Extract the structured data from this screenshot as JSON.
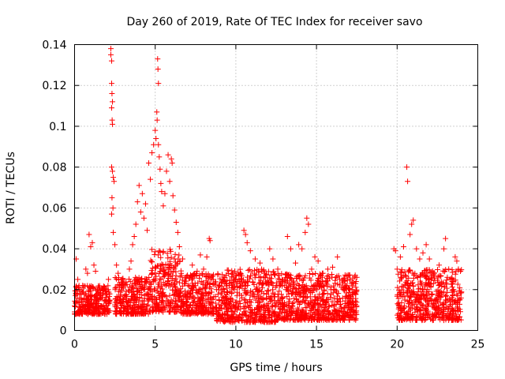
{
  "chart_data": {
    "type": "scatter",
    "title": "Day 260 of 2019, Rate Of TEC Index for receiver savo",
    "xlabel": "GPS time / hours",
    "ylabel": "ROTI / TECUs",
    "xlim": [
      0,
      25
    ],
    "ylim": [
      0,
      0.14
    ],
    "xticks": [
      0,
      5,
      10,
      15,
      20,
      25
    ],
    "xtick_labels": [
      "0",
      "5",
      "10",
      "15",
      "20",
      "25"
    ],
    "yticks": [
      0,
      0.02,
      0.04,
      0.06,
      0.08,
      0.1,
      0.12,
      0.14
    ],
    "ytick_labels": [
      "0",
      "0.02",
      "0.04",
      "0.06",
      "0.08",
      "0.1",
      "0.12",
      "0.14"
    ],
    "grid": true,
    "marker": "+",
    "color": "#ff0000",
    "series": [
      {
        "points": [
          [
            0.0,
            0.012
          ],
          [
            0.1,
            0.035
          ],
          [
            0.2,
            0.025
          ],
          [
            0.3,
            0.02
          ],
          [
            0.4,
            0.018
          ],
          [
            0.5,
            0.022
          ],
          [
            0.6,
            0.015
          ],
          [
            0.7,
            0.03
          ],
          [
            0.8,
            0.028
          ],
          [
            0.9,
            0.047
          ],
          [
            1.0,
            0.041
          ],
          [
            1.1,
            0.043
          ],
          [
            1.2,
            0.032
          ],
          [
            1.3,
            0.029
          ],
          [
            1.4,
            0.02
          ],
          [
            1.6,
            0.016
          ],
          [
            1.8,
            0.021
          ],
          [
            2.0,
            0.018
          ],
          [
            2.1,
            0.025
          ],
          [
            2.25,
            0.138
          ],
          [
            2.25,
            0.135
          ],
          [
            2.3,
            0.132
          ],
          [
            2.3,
            0.121
          ],
          [
            2.32,
            0.116
          ],
          [
            2.35,
            0.112
          ],
          [
            2.3,
            0.109
          ],
          [
            2.33,
            0.103
          ],
          [
            2.35,
            0.101
          ],
          [
            2.3,
            0.08
          ],
          [
            2.35,
            0.078
          ],
          [
            2.4,
            0.075
          ],
          [
            2.45,
            0.073
          ],
          [
            2.32,
            0.065
          ],
          [
            2.38,
            0.06
          ],
          [
            2.3,
            0.057
          ],
          [
            2.4,
            0.048
          ],
          [
            2.5,
            0.042
          ],
          [
            2.6,
            0.032
          ],
          [
            2.7,
            0.028
          ],
          [
            2.8,
            0.022
          ],
          [
            3.0,
            0.025
          ],
          [
            3.2,
            0.019
          ],
          [
            3.4,
            0.03
          ],
          [
            3.5,
            0.034
          ],
          [
            3.6,
            0.042
          ],
          [
            3.7,
            0.046
          ],
          [
            3.8,
            0.052
          ],
          [
            3.9,
            0.063
          ],
          [
            4.0,
            0.071
          ],
          [
            4.1,
            0.058
          ],
          [
            4.2,
            0.067
          ],
          [
            4.3,
            0.055
          ],
          [
            4.4,
            0.062
          ],
          [
            4.5,
            0.049
          ],
          [
            4.6,
            0.082
          ],
          [
            4.7,
            0.074
          ],
          [
            4.8,
            0.087
          ],
          [
            4.9,
            0.091
          ],
          [
            5.0,
            0.098
          ],
          [
            5.05,
            0.094
          ],
          [
            5.1,
            0.107
          ],
          [
            5.12,
            0.103
          ],
          [
            5.15,
            0.133
          ],
          [
            5.17,
            0.128
          ],
          [
            5.2,
            0.121
          ],
          [
            5.2,
            0.091
          ],
          [
            5.25,
            0.085
          ],
          [
            5.3,
            0.079
          ],
          [
            5.35,
            0.072
          ],
          [
            5.4,
            0.068
          ],
          [
            5.5,
            0.061
          ],
          [
            5.6,
            0.067
          ],
          [
            5.7,
            0.078
          ],
          [
            5.8,
            0.086
          ],
          [
            5.9,
            0.073
          ],
          [
            6.0,
            0.084
          ],
          [
            6.05,
            0.082
          ],
          [
            6.1,
            0.066
          ],
          [
            6.2,
            0.059
          ],
          [
            6.3,
            0.053
          ],
          [
            6.4,
            0.048
          ],
          [
            6.5,
            0.041
          ],
          [
            6.7,
            0.035
          ],
          [
            7.0,
            0.027
          ],
          [
            7.3,
            0.032
          ],
          [
            7.6,
            0.029
          ],
          [
            7.8,
            0.037
          ],
          [
            8.0,
            0.03
          ],
          [
            8.2,
            0.036
          ],
          [
            8.35,
            0.045
          ],
          [
            8.4,
            0.044
          ],
          [
            8.6,
            0.025
          ],
          [
            8.8,
            0.02
          ],
          [
            9.0,
            0.022
          ],
          [
            9.3,
            0.019
          ],
          [
            9.6,
            0.023
          ],
          [
            9.9,
            0.02
          ],
          [
            10.2,
            0.025
          ],
          [
            10.5,
            0.049
          ],
          [
            10.6,
            0.047
          ],
          [
            10.7,
            0.043
          ],
          [
            10.9,
            0.039
          ],
          [
            11.2,
            0.035
          ],
          [
            11.5,
            0.033
          ],
          [
            11.8,
            0.028
          ],
          [
            12.1,
            0.04
          ],
          [
            12.3,
            0.035
          ],
          [
            12.6,
            0.03
          ],
          [
            12.9,
            0.024
          ],
          [
            13.2,
            0.046
          ],
          [
            13.4,
            0.04
          ],
          [
            13.7,
            0.033
          ],
          [
            13.9,
            0.042
          ],
          [
            14.1,
            0.04
          ],
          [
            14.3,
            0.048
          ],
          [
            14.4,
            0.055
          ],
          [
            14.5,
            0.052
          ],
          [
            14.7,
            0.03
          ],
          [
            14.9,
            0.036
          ],
          [
            15.1,
            0.034
          ],
          [
            15.4,
            0.028
          ],
          [
            15.7,
            0.03
          ],
          [
            16.0,
            0.031
          ],
          [
            16.3,
            0.036
          ],
          [
            16.6,
            0.025
          ],
          [
            16.9,
            0.022
          ],
          [
            17.2,
            0.02
          ],
          [
            17.4,
            0.027
          ],
          [
            17.5,
            0.026
          ],
          [
            19.8,
            0.04
          ],
          [
            19.9,
            0.039
          ],
          [
            20.0,
            0.03
          ],
          [
            20.2,
            0.036
          ],
          [
            20.4,
            0.041
          ],
          [
            20.6,
            0.08
          ],
          [
            20.65,
            0.073
          ],
          [
            20.8,
            0.047
          ],
          [
            20.9,
            0.052
          ],
          [
            21.0,
            0.054
          ],
          [
            21.2,
            0.04
          ],
          [
            21.4,
            0.035
          ],
          [
            21.6,
            0.038
          ],
          [
            21.8,
            0.042
          ],
          [
            22.0,
            0.035
          ],
          [
            22.3,
            0.028
          ],
          [
            22.6,
            0.032
          ],
          [
            22.9,
            0.04
          ],
          [
            23.0,
            0.045
          ],
          [
            23.2,
            0.03
          ],
          [
            23.4,
            0.025
          ],
          [
            23.6,
            0.036
          ],
          [
            23.7,
            0.034
          ],
          [
            23.8,
            0.03
          ],
          [
            23.9,
            0.015
          ]
        ],
        "bands": [
          {
            "x": [
              0.0,
              2.2
            ],
            "y": [
              0.008,
              0.022
            ]
          },
          {
            "x": [
              2.5,
              4.6
            ],
            "y": [
              0.008,
              0.026
            ]
          },
          {
            "x": [
              4.6,
              6.6
            ],
            "y": [
              0.009,
              0.04
            ]
          },
          {
            "x": [
              6.6,
              8.8
            ],
            "y": [
              0.008,
              0.028
            ]
          },
          {
            "x": [
              8.8,
              12.5
            ],
            "y": [
              0.004,
              0.03
            ]
          },
          {
            "x": [
              12.5,
              17.5
            ],
            "y": [
              0.005,
              0.028
            ]
          },
          {
            "x": [
              20.0,
              24.0
            ],
            "y": [
              0.005,
              0.03
            ]
          }
        ]
      }
    ]
  }
}
